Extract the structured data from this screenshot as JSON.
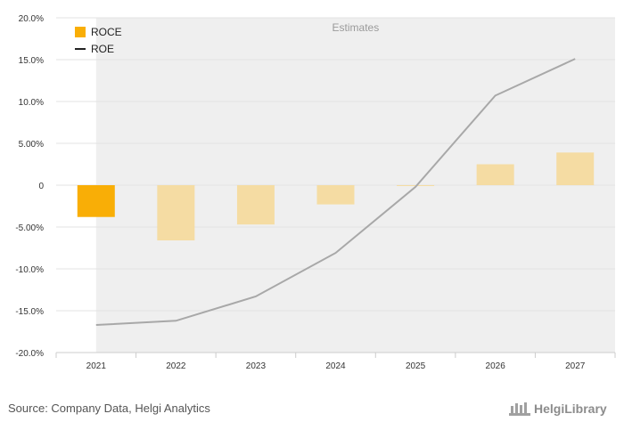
{
  "chart_data": {
    "type": "bar",
    "categories": [
      "2021",
      "2022",
      "2023",
      "2024",
      "2025",
      "2026",
      "2027"
    ],
    "series": [
      {
        "name": "ROCE",
        "kind": "bar",
        "values": [
          -3.8,
          -6.6,
          -4.7,
          -2.3,
          -0.1,
          2.5,
          3.9
        ]
      },
      {
        "name": "ROE",
        "kind": "line",
        "values": [
          -16.7,
          -16.2,
          -13.3,
          -8.1,
          -0.2,
          10.7,
          15.1
        ]
      }
    ],
    "ylim": [
      -20,
      20
    ],
    "yticks": [
      20,
      15,
      10,
      5,
      0,
      -5,
      -10,
      -15,
      -20
    ],
    "ytick_labels": [
      "20.0%",
      "15.0%",
      "10.0%",
      "5.00%",
      "0",
      "-5.00%",
      "-10.0%",
      "-15.0%",
      "-20.0%"
    ],
    "estimates_label": "Estimates",
    "estimates_from_category": "2022",
    "legend": {
      "placement": "top-left",
      "items": [
        "ROCE",
        "ROE"
      ]
    },
    "grid": true,
    "colors": {
      "roce_actual": "#f9ae06",
      "roce_estimate": "#f5dca3",
      "roe_line": "#a8a8a8",
      "estimate_band": "#efefef"
    }
  },
  "source_text": "Source: Company Data, Helgi Analytics",
  "logo_text": "HelgiLibrary"
}
